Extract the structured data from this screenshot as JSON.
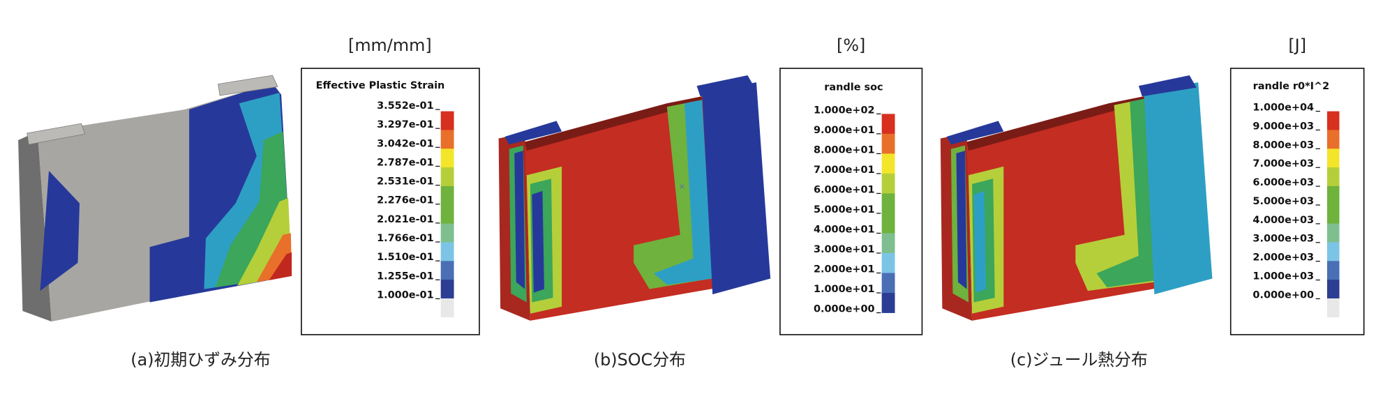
{
  "panels": [
    {
      "unit": "[mm/mm]",
      "legend_title": "Effective Plastic Strain",
      "legend_labels": [
        "3.552e-01",
        "3.297e-01",
        "3.042e-01",
        "2.787e-01",
        "2.531e-01",
        "2.276e-01",
        "2.021e-01",
        "1.766e-01",
        "1.510e-01",
        "1.255e-01",
        "1.000e-01"
      ],
      "caption": "(a)初期ひずみ分布"
    },
    {
      "unit": "[%]",
      "legend_title": "randle soc",
      "legend_labels": [
        "1.000e+02",
        "9.000e+01",
        "8.000e+01",
        "7.000e+01",
        "6.000e+01",
        "5.000e+01",
        "4.000e+01",
        "3.000e+01",
        "2.000e+01",
        "1.000e+01",
        "0.000e+00"
      ],
      "caption": "(b)SOC分布"
    },
    {
      "unit": "[J]",
      "legend_title": "randle r0*I^2",
      "legend_labels": [
        "1.000e+04",
        "9.000e+03",
        "8.000e+03",
        "7.000e+03",
        "6.000e+03",
        "5.000e+03",
        "4.000e+03",
        "3.000e+03",
        "2.000e+03",
        "1.000e+03",
        "0.000e+00"
      ],
      "caption": "(c)ジュール熱分布"
    }
  ]
}
